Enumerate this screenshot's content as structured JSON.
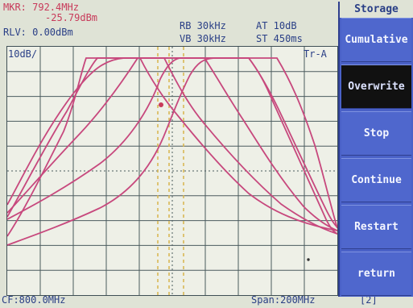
{
  "header": {
    "mkr": "MKR: 792.4MHz",
    "mkr_level": "-25.79dBm",
    "rlv": "RLV: 0.00dBm",
    "rb": "RB  30kHz",
    "vb": "VB  30kHz",
    "at": "AT  10dB",
    "st": "ST  450ms"
  },
  "plot": {
    "ref_scale": "10dB/",
    "trace": "Tr-A"
  },
  "footer": {
    "cf": "CF:800.0MHz",
    "span": "Span:200MHz",
    "flag": "[2]"
  },
  "menu": {
    "title": "Storage",
    "items": [
      {
        "label": "Cumulative",
        "active": false
      },
      {
        "label": "Overwrite",
        "active": true
      },
      {
        "label": "Stop",
        "active": false
      },
      {
        "label": "Continue",
        "active": false
      },
      {
        "label": "Restart",
        "active": false
      },
      {
        "label": "return",
        "active": false
      }
    ]
  },
  "colors": {
    "trace": "#c7487d",
    "marker": "#d7b44c",
    "grid": "#3a4b50"
  }
}
